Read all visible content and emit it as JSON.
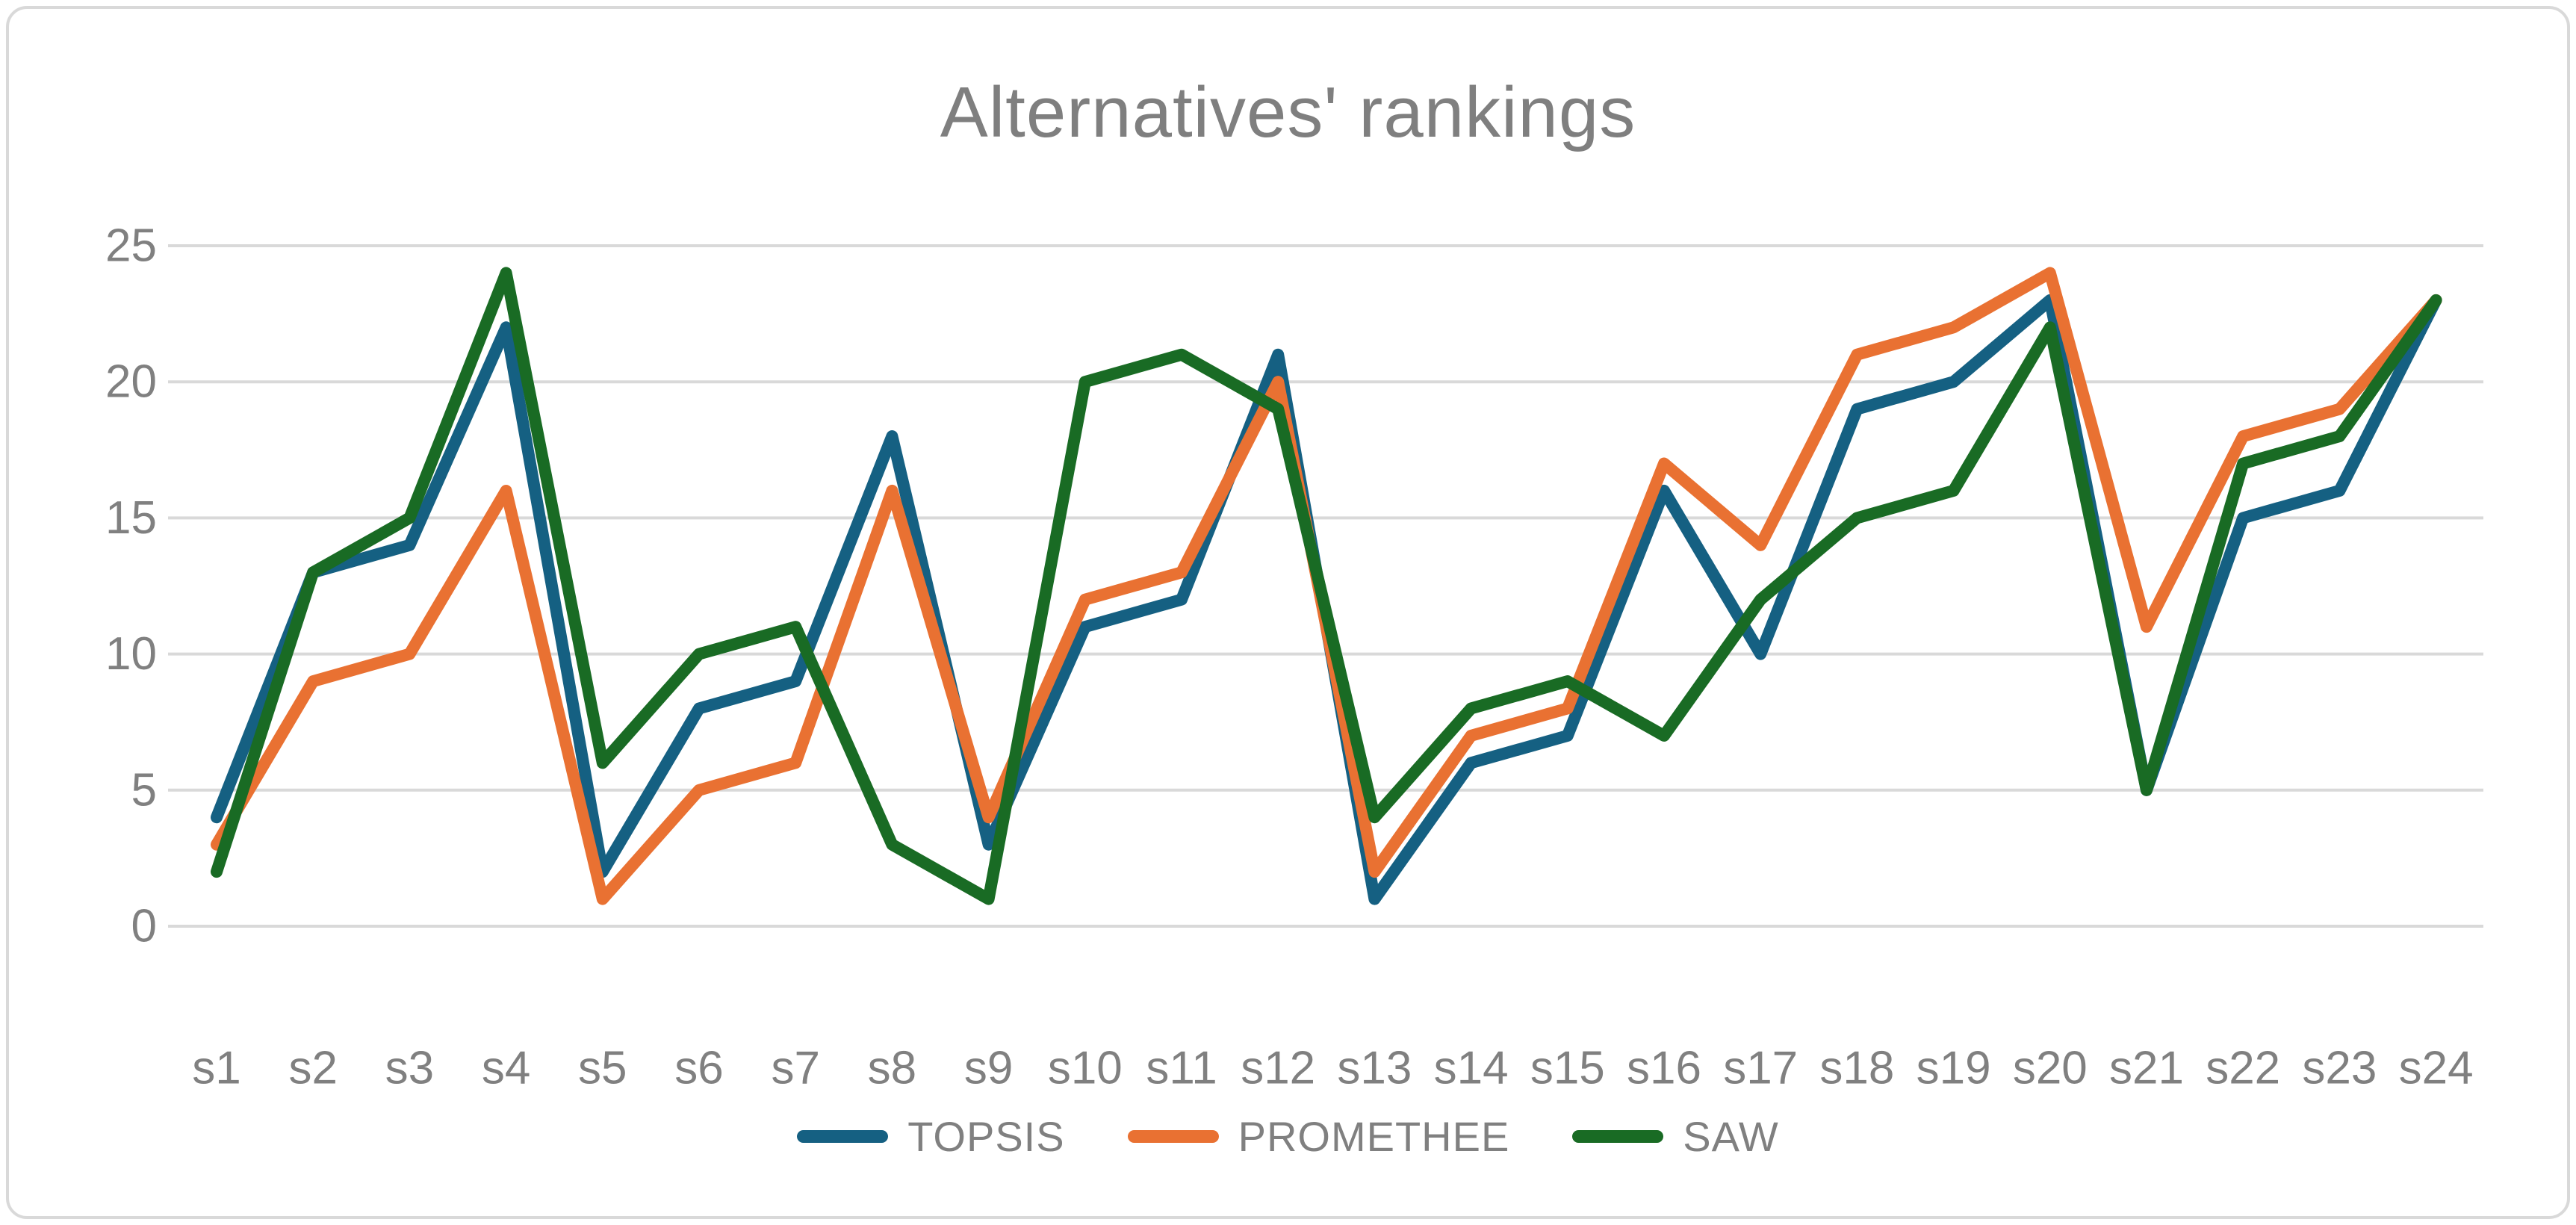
{
  "chart_data": {
    "type": "line",
    "title": "Alternatives' rankings",
    "xlabel": "",
    "ylabel": "",
    "categories": [
      "s1",
      "s2",
      "s3",
      "s4",
      "s5",
      "s6",
      "s7",
      "s8",
      "s9",
      "s10",
      "s11",
      "s12",
      "s13",
      "s14",
      "s15",
      "s16",
      "s17",
      "s18",
      "s19",
      "s20",
      "s21",
      "s22",
      "s23",
      "s24"
    ],
    "series": [
      {
        "name": "TOPSIS",
        "color": "#156082",
        "values": [
          4,
          13,
          14,
          22,
          2,
          8,
          9,
          18,
          3,
          11,
          12,
          21,
          1,
          6,
          7,
          16,
          10,
          19,
          20,
          23,
          5,
          15,
          16,
          23
        ]
      },
      {
        "name": "PROMETHEE",
        "color": "#E97132",
        "values": [
          3,
          9,
          10,
          16,
          1,
          5,
          6,
          16,
          4,
          12,
          13,
          20,
          2,
          7,
          8,
          17,
          14,
          21,
          22,
          24,
          11,
          18,
          19,
          23
        ]
      },
      {
        "name": "SAW",
        "color": "#196B24",
        "values": [
          2,
          13,
          15,
          24,
          6,
          10,
          11,
          3,
          1,
          20,
          21,
          19,
          4,
          8,
          9,
          7,
          12,
          15,
          16,
          22,
          5,
          17,
          18,
          23
        ]
      }
    ],
    "yticks": [
      0,
      5,
      10,
      15,
      20,
      25
    ],
    "ylim": [
      0,
      25
    ],
    "grid": true,
    "legend_position": "bottom",
    "text_color": "#808080",
    "gridline_color": "#d9d9d9"
  }
}
